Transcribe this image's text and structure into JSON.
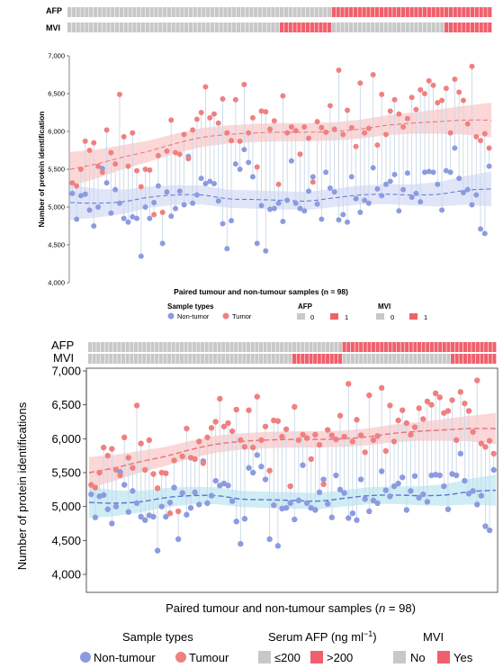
{
  "colors": {
    "tumour": "#f08080",
    "tumour_band": "#f9c9c9",
    "non_tumour": "#8c9be0",
    "non_tumour_band_top": "#d6dcf6",
    "non_tumour_band_bottom": "#bfe7f1",
    "stem": "#c9d8e8",
    "bar_grey": "#c8c8c8",
    "bar_red": "#f0606c"
  },
  "top_panel": {
    "afp_label": "AFP",
    "mvi_label": "MVI",
    "yticks": [
      "4,000",
      "4,500",
      "5,000",
      "5,500",
      "6,000",
      "6,500",
      "7,000"
    ],
    "ylabel": "Number of protein identification",
    "xlabel": "Paired tumour and non-tumour samples (n = 98)",
    "legend": {
      "sample_title": "Sample types",
      "non_tumour": "Non-tumor",
      "tumour": "Tumor",
      "afp_title": "AFP",
      "mvi_title": "MVI",
      "zero": "0",
      "one": "1"
    }
  },
  "bottom_panel": {
    "afp_label": "AFP",
    "mvi_label": "MVI",
    "yticks": [
      "4,000",
      "4,500",
      "5,000",
      "5,500",
      "6,000",
      "6,500",
      "7,000"
    ],
    "ylabel": "Number of protein identifications",
    "xlabel_prefix": "Paired tumour and non-tumour samples (",
    "xlabel_n": "n",
    "xlabel_suffix": " = 98)",
    "legend": {
      "sample_title": "Sample types",
      "non_tumour": "Non-tumour",
      "tumour": "Tumour",
      "afp_title_prefix": "Serum AFP (ng ml",
      "afp_title_sup": "−1",
      "afp_title_suffix": ")",
      "afp_low": "≤200",
      "afp_high": ">200",
      "mvi_title": "MVI",
      "mvi_no": "No",
      "mvi_yes": "Yes"
    }
  },
  "chart_data": {
    "type": "scatter",
    "n": 98,
    "ylim": [
      4000,
      7000
    ],
    "xlabel": "Paired tumour and non-tumour samples (n = 98)",
    "ylabel": "Number of protein identifications",
    "afp_positive_from_index": 61,
    "mvi_positive_index_ranges": [
      [
        49,
        60
      ],
      [
        87,
        97
      ]
    ],
    "series": [
      {
        "name": "Tumour",
        "values": [
          5320,
          5280,
          5500,
          5870,
          5750,
          5850,
          5540,
          5460,
          6020,
          5720,
          5570,
          6490,
          5930,
          5540,
          5980,
          5480,
          5270,
          5500,
          5490,
          4900,
          5680,
          4930,
          5740,
          6150,
          5720,
          5700,
          5960,
          5640,
          6020,
          6160,
          6250,
          6590,
          6180,
          6230,
          6110,
          6430,
          5980,
          5880,
          6420,
          5870,
          6620,
          5980,
          6180,
          5530,
          6270,
          6260,
          6030,
          6140,
          5300,
          6470,
          5980,
          6060,
          6010,
          5700,
          6060,
          5910,
          5330,
          6130,
          6050,
          5990,
          6340,
          6030,
          6810,
          5960,
          6280,
          6050,
          5800,
          6640,
          5980,
          6040,
          6750,
          5820,
          6490,
          5960,
          6270,
          6420,
          6230,
          6060,
          6170,
          6450,
          6290,
          6550,
          6500,
          6670,
          6610,
          6380,
          6410,
          6570,
          5980,
          6690,
          6520,
          6410,
          6100,
          6860,
          5930,
          5880,
          5970,
          5780
        ]
      },
      {
        "name": "Non-tumour",
        "values": [
          5180,
          4840,
          5150,
          5170,
          4960,
          4750,
          5000,
          5510,
          5320,
          4920,
          5230,
          5050,
          4850,
          4800,
          4870,
          4850,
          4350,
          5000,
          4850,
          5060,
          5280,
          4520,
          5200,
          4880,
          4980,
          5210,
          5030,
          5670,
          5050,
          5160,
          5380,
          5310,
          5340,
          5310,
          5080,
          4780,
          4450,
          4820,
          5570,
          5500,
          5760,
          5590,
          5400,
          4520,
          5020,
          4420,
          4970,
          4980,
          5050,
          4810,
          5090,
          5610,
          5050,
          4980,
          4950,
          5210,
          5400,
          5040,
          4840,
          5460,
          5250,
          5200,
          4830,
          4900,
          4800,
          5400,
          5110,
          4930,
          5090,
          5050,
          5520,
          5240,
          5150,
          5300,
          5340,
          5430,
          4950,
          5230,
          5450,
          5130,
          5180,
          5070,
          5460,
          5470,
          5460,
          5300,
          4960,
          5480,
          5460,
          5780,
          5380,
          5190,
          5230,
          5030,
          5160,
          4710,
          4650,
          5540
        ]
      }
    ],
    "trend": {
      "tumour": [
        5500,
        5570,
        5660,
        5740,
        5840,
        5920,
        5960,
        5980,
        5990,
        5990,
        6000,
        6030,
        6080,
        6110,
        6130,
        6150,
        6150
      ],
      "non_tumour": [
        5060,
        5050,
        5070,
        5130,
        5160,
        5160,
        5110,
        5100,
        5090,
        5080,
        5120,
        5160,
        5170,
        5160,
        5170,
        5220,
        5240
      ]
    }
  }
}
